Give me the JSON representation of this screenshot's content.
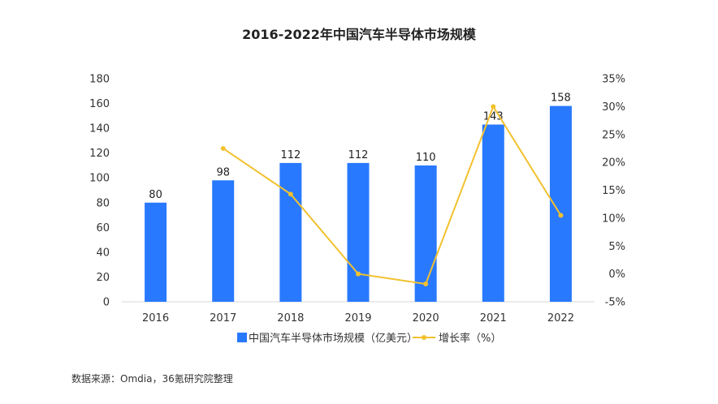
{
  "chart_data": {
    "type": "bar",
    "title": "2016-2022年中国汽车半导体市场规模",
    "categories": [
      "2016",
      "2017",
      "2018",
      "2019",
      "2020",
      "2021",
      "2022"
    ],
    "series": [
      {
        "name": "中国汽车半导体市场规模（亿美元）",
        "type": "bar",
        "axis": "left",
        "values": [
          80,
          98,
          112,
          112,
          110,
          143,
          158
        ],
        "data_labels": [
          "80",
          "98",
          "112",
          "112",
          "110",
          "143",
          "158"
        ]
      },
      {
        "name": "增长率（%）",
        "type": "line",
        "axis": "right",
        "values": [
          null,
          22.5,
          14.3,
          0.0,
          -1.8,
          30.0,
          10.5
        ]
      }
    ],
    "left_axis": {
      "ylim": [
        0,
        180
      ],
      "ticks": [
        "0",
        "20",
        "40",
        "60",
        "80",
        "100",
        "120",
        "140",
        "160",
        "180"
      ]
    },
    "right_axis": {
      "ylim": [
        -5,
        35
      ],
      "ticks": [
        "-5%",
        "0%",
        "5%",
        "10%",
        "15%",
        "20%",
        "25%",
        "30%",
        "35%"
      ]
    },
    "legend_position": "bottom",
    "grid": false,
    "xlabel": "",
    "ylabel": "",
    "colors": {
      "bar": "#2979FF",
      "line": "#F2C12E",
      "axis": "#D9D9D9"
    }
  },
  "source": "数据来源：Omdia，36氪研究院整理"
}
